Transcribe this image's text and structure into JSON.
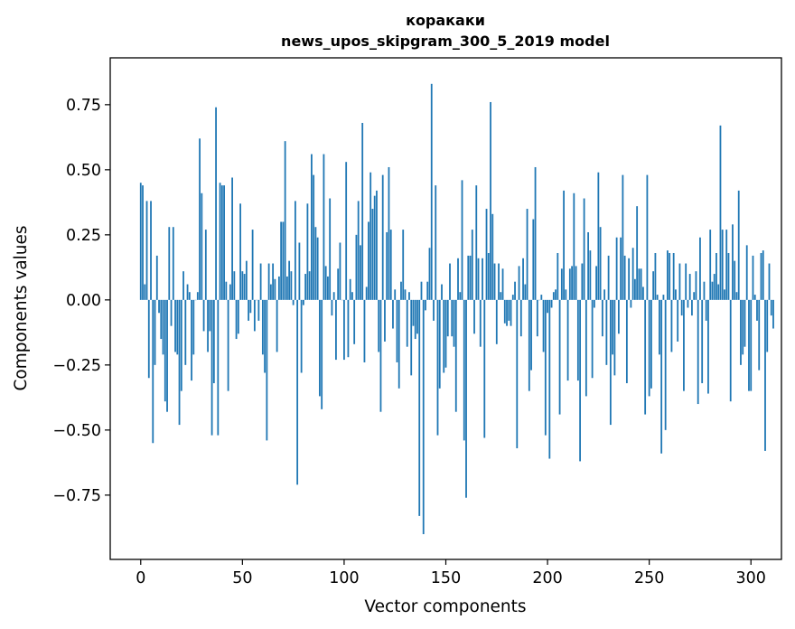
{
  "chart_data": {
    "type": "bar",
    "title": "коракаки",
    "subtitle": "news_upos_skipgram_300_5_2019 model",
    "xlabel": "Vector components",
    "ylabel": "Components values",
    "bar_color": "#1f77b4",
    "xlim": [
      -15,
      315
    ],
    "ylim": [
      -0.997,
      0.93
    ],
    "xticks": [
      0,
      50,
      100,
      150,
      200,
      250,
      300
    ],
    "xtick_labels": [
      "0",
      "50",
      "100",
      "150",
      "200",
      "250",
      "300"
    ],
    "yticks": [
      -0.75,
      -0.5,
      -0.25,
      0.0,
      0.25,
      0.5,
      0.75
    ],
    "ytick_labels": [
      "−0.75",
      "−0.50",
      "−0.25",
      "0.00",
      "0.25",
      "0.50",
      "0.75"
    ],
    "values": [
      0.45,
      0.44,
      0.06,
      0.38,
      -0.3,
      0.38,
      -0.55,
      -0.25,
      0.17,
      -0.05,
      -0.15,
      -0.21,
      -0.39,
      -0.43,
      0.28,
      -0.1,
      0.28,
      -0.2,
      -0.21,
      -0.48,
      -0.35,
      0.11,
      -0.25,
      0.06,
      0.03,
      -0.31,
      -0.21,
      0.0,
      0.03,
      0.62,
      0.41,
      -0.12,
      0.27,
      -0.2,
      -0.12,
      -0.52,
      -0.32,
      0.74,
      -0.52,
      0.45,
      0.44,
      0.44,
      0.07,
      -0.35,
      0.06,
      0.47,
      0.11,
      -0.15,
      -0.13,
      0.37,
      0.11,
      0.1,
      0.15,
      -0.08,
      -0.05,
      0.27,
      -0.12,
      0.0,
      -0.08,
      0.14,
      -0.21,
      -0.28,
      -0.54,
      0.14,
      0.06,
      0.14,
      0.08,
      -0.2,
      0.09,
      0.3,
      0.3,
      0.61,
      0.09,
      0.15,
      0.11,
      -0.02,
      0.38,
      -0.71,
      0.22,
      -0.28,
      -0.02,
      0.1,
      0.37,
      0.11,
      0.56,
      0.48,
      0.28,
      0.24,
      -0.37,
      -0.42,
      0.56,
      0.13,
      0.09,
      0.39,
      -0.06,
      0.03,
      -0.23,
      0.12,
      0.22,
      0.0,
      -0.23,
      0.53,
      -0.22,
      0.08,
      0.03,
      -0.17,
      0.25,
      0.38,
      0.21,
      0.68,
      -0.24,
      0.05,
      0.3,
      0.49,
      0.35,
      0.4,
      0.42,
      -0.2,
      -0.43,
      0.48,
      -0.16,
      0.26,
      0.51,
      0.27,
      -0.11,
      0.04,
      -0.24,
      -0.34,
      0.07,
      0.27,
      0.04,
      -0.18,
      0.03,
      -0.29,
      -0.1,
      -0.15,
      -0.13,
      -0.83,
      0.07,
      -0.9,
      -0.04,
      0.07,
      0.2,
      0.83,
      -0.08,
      0.44,
      -0.52,
      -0.34,
      0.06,
      -0.28,
      -0.26,
      -0.14,
      0.14,
      -0.14,
      -0.18,
      -0.43,
      0.16,
      0.03,
      0.46,
      -0.54,
      -0.76,
      0.17,
      0.17,
      0.27,
      -0.13,
      0.44,
      0.16,
      -0.18,
      0.16,
      -0.53,
      0.35,
      0.18,
      0.76,
      0.33,
      0.14,
      -0.17,
      0.14,
      0.03,
      0.12,
      -0.09,
      -0.1,
      -0.08,
      -0.1,
      0.02,
      0.07,
      -0.57,
      0.13,
      -0.14,
      0.16,
      0.06,
      0.35,
      -0.35,
      -0.27,
      0.31,
      0.51,
      -0.14,
      0.0,
      0.02,
      -0.2,
      -0.52,
      -0.05,
      -0.61,
      -0.03,
      0.03,
      0.04,
      0.18,
      -0.44,
      0.12,
      0.42,
      0.04,
      -0.31,
      0.12,
      0.13,
      0.41,
      0.13,
      -0.31,
      -0.62,
      0.14,
      0.39,
      -0.37,
      0.26,
      0.19,
      -0.3,
      -0.03,
      0.13,
      0.49,
      0.28,
      -0.14,
      0.04,
      -0.25,
      0.17,
      -0.48,
      -0.21,
      -0.29,
      0.24,
      -0.13,
      0.24,
      0.48,
      0.17,
      -0.32,
      0.16,
      -0.03,
      0.2,
      0.08,
      0.36,
      0.12,
      0.12,
      0.05,
      -0.44,
      0.48,
      -0.37,
      -0.34,
      0.11,
      0.18,
      0.02,
      -0.21,
      -0.59,
      0.02,
      -0.5,
      0.19,
      0.18,
      -0.2,
      0.18,
      0.04,
      -0.16,
      0.14,
      -0.06,
      -0.35,
      0.14,
      -0.03,
      0.1,
      -0.06,
      0.03,
      0.11,
      -0.4,
      0.24,
      -0.32,
      0.07,
      -0.08,
      -0.36,
      0.27,
      0.07,
      0.1,
      0.18,
      0.06,
      0.67,
      0.27,
      0.04,
      0.27,
      0.18,
      -0.39,
      0.29,
      0.15,
      0.03,
      0.42,
      -0.25,
      -0.21,
      -0.18,
      0.21,
      -0.35,
      -0.35,
      0.17,
      0.02,
      -0.08,
      -0.27,
      0.18,
      0.19,
      -0.58,
      -0.2,
      0.14,
      -0.06,
      -0.11
    ]
  }
}
